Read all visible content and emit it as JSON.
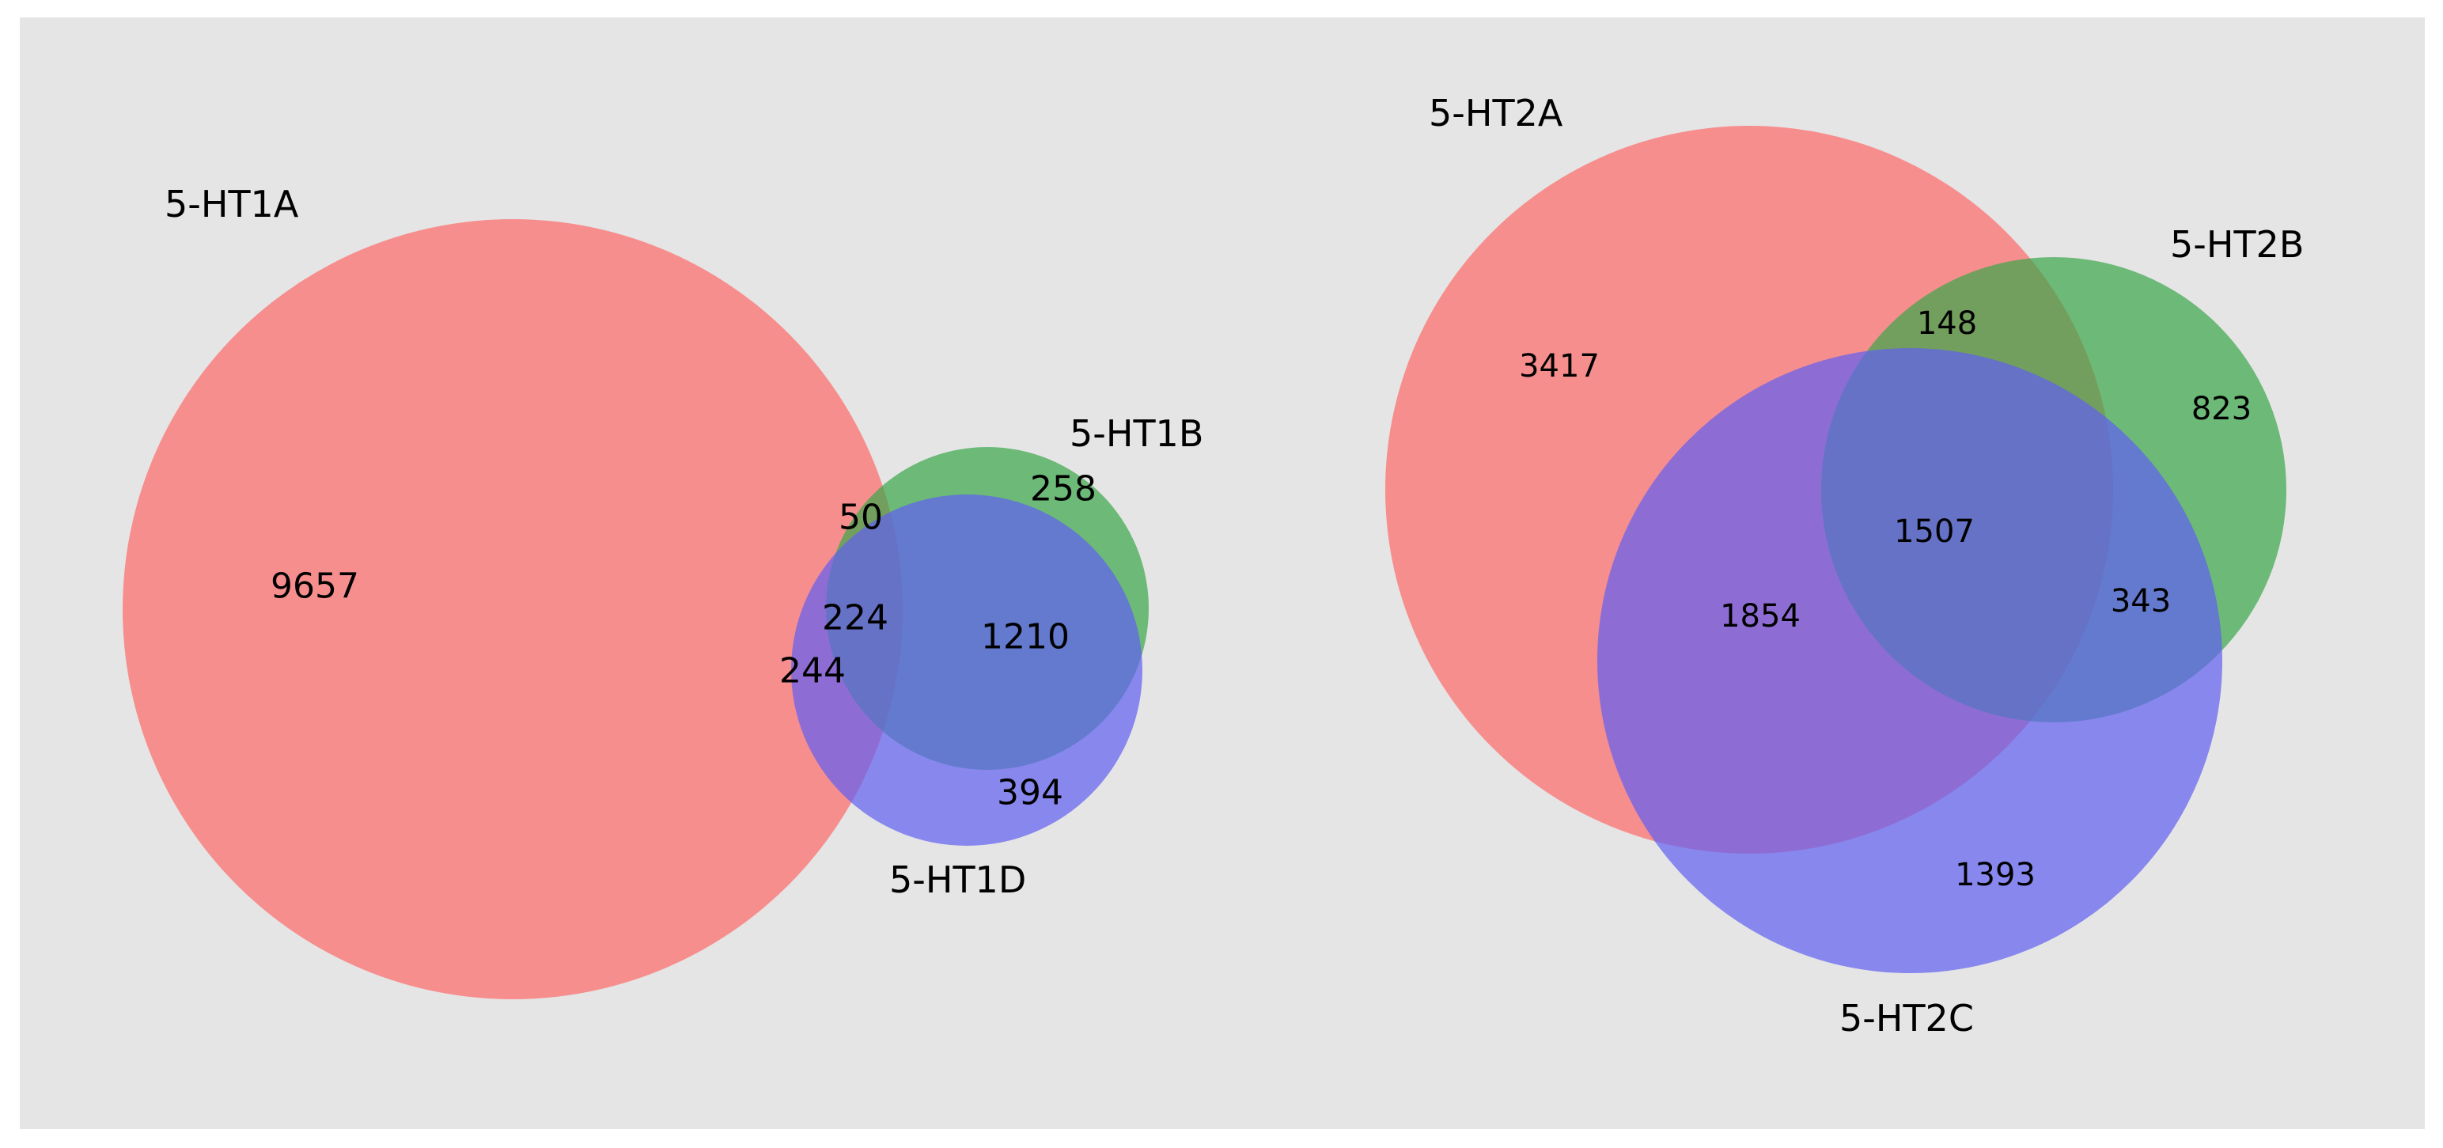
{
  "colors": {
    "background": "#e5e5e5",
    "set_a": "#ff6a6a",
    "set_b": "#3ba74a",
    "set_c": "#5f5ff2"
  },
  "venn_left": {
    "sets": {
      "a": "5-HT1A",
      "b": "5-HT1B",
      "c": "5-HT1D"
    },
    "regions": {
      "a_only": "9657",
      "b_only": "258",
      "c_only": "394",
      "ab_only": "50",
      "ac_only": "244",
      "bc_only": "1210",
      "abc": "224"
    }
  },
  "venn_right": {
    "sets": {
      "a": "5-HT2A",
      "b": "5-HT2B",
      "c": "5-HT2C"
    },
    "regions": {
      "a_only": "3417",
      "b_only": "823",
      "c_only": "1393",
      "ab_only": "148",
      "ac_only": "1854",
      "bc_only": "343",
      "abc": "1507"
    }
  }
}
